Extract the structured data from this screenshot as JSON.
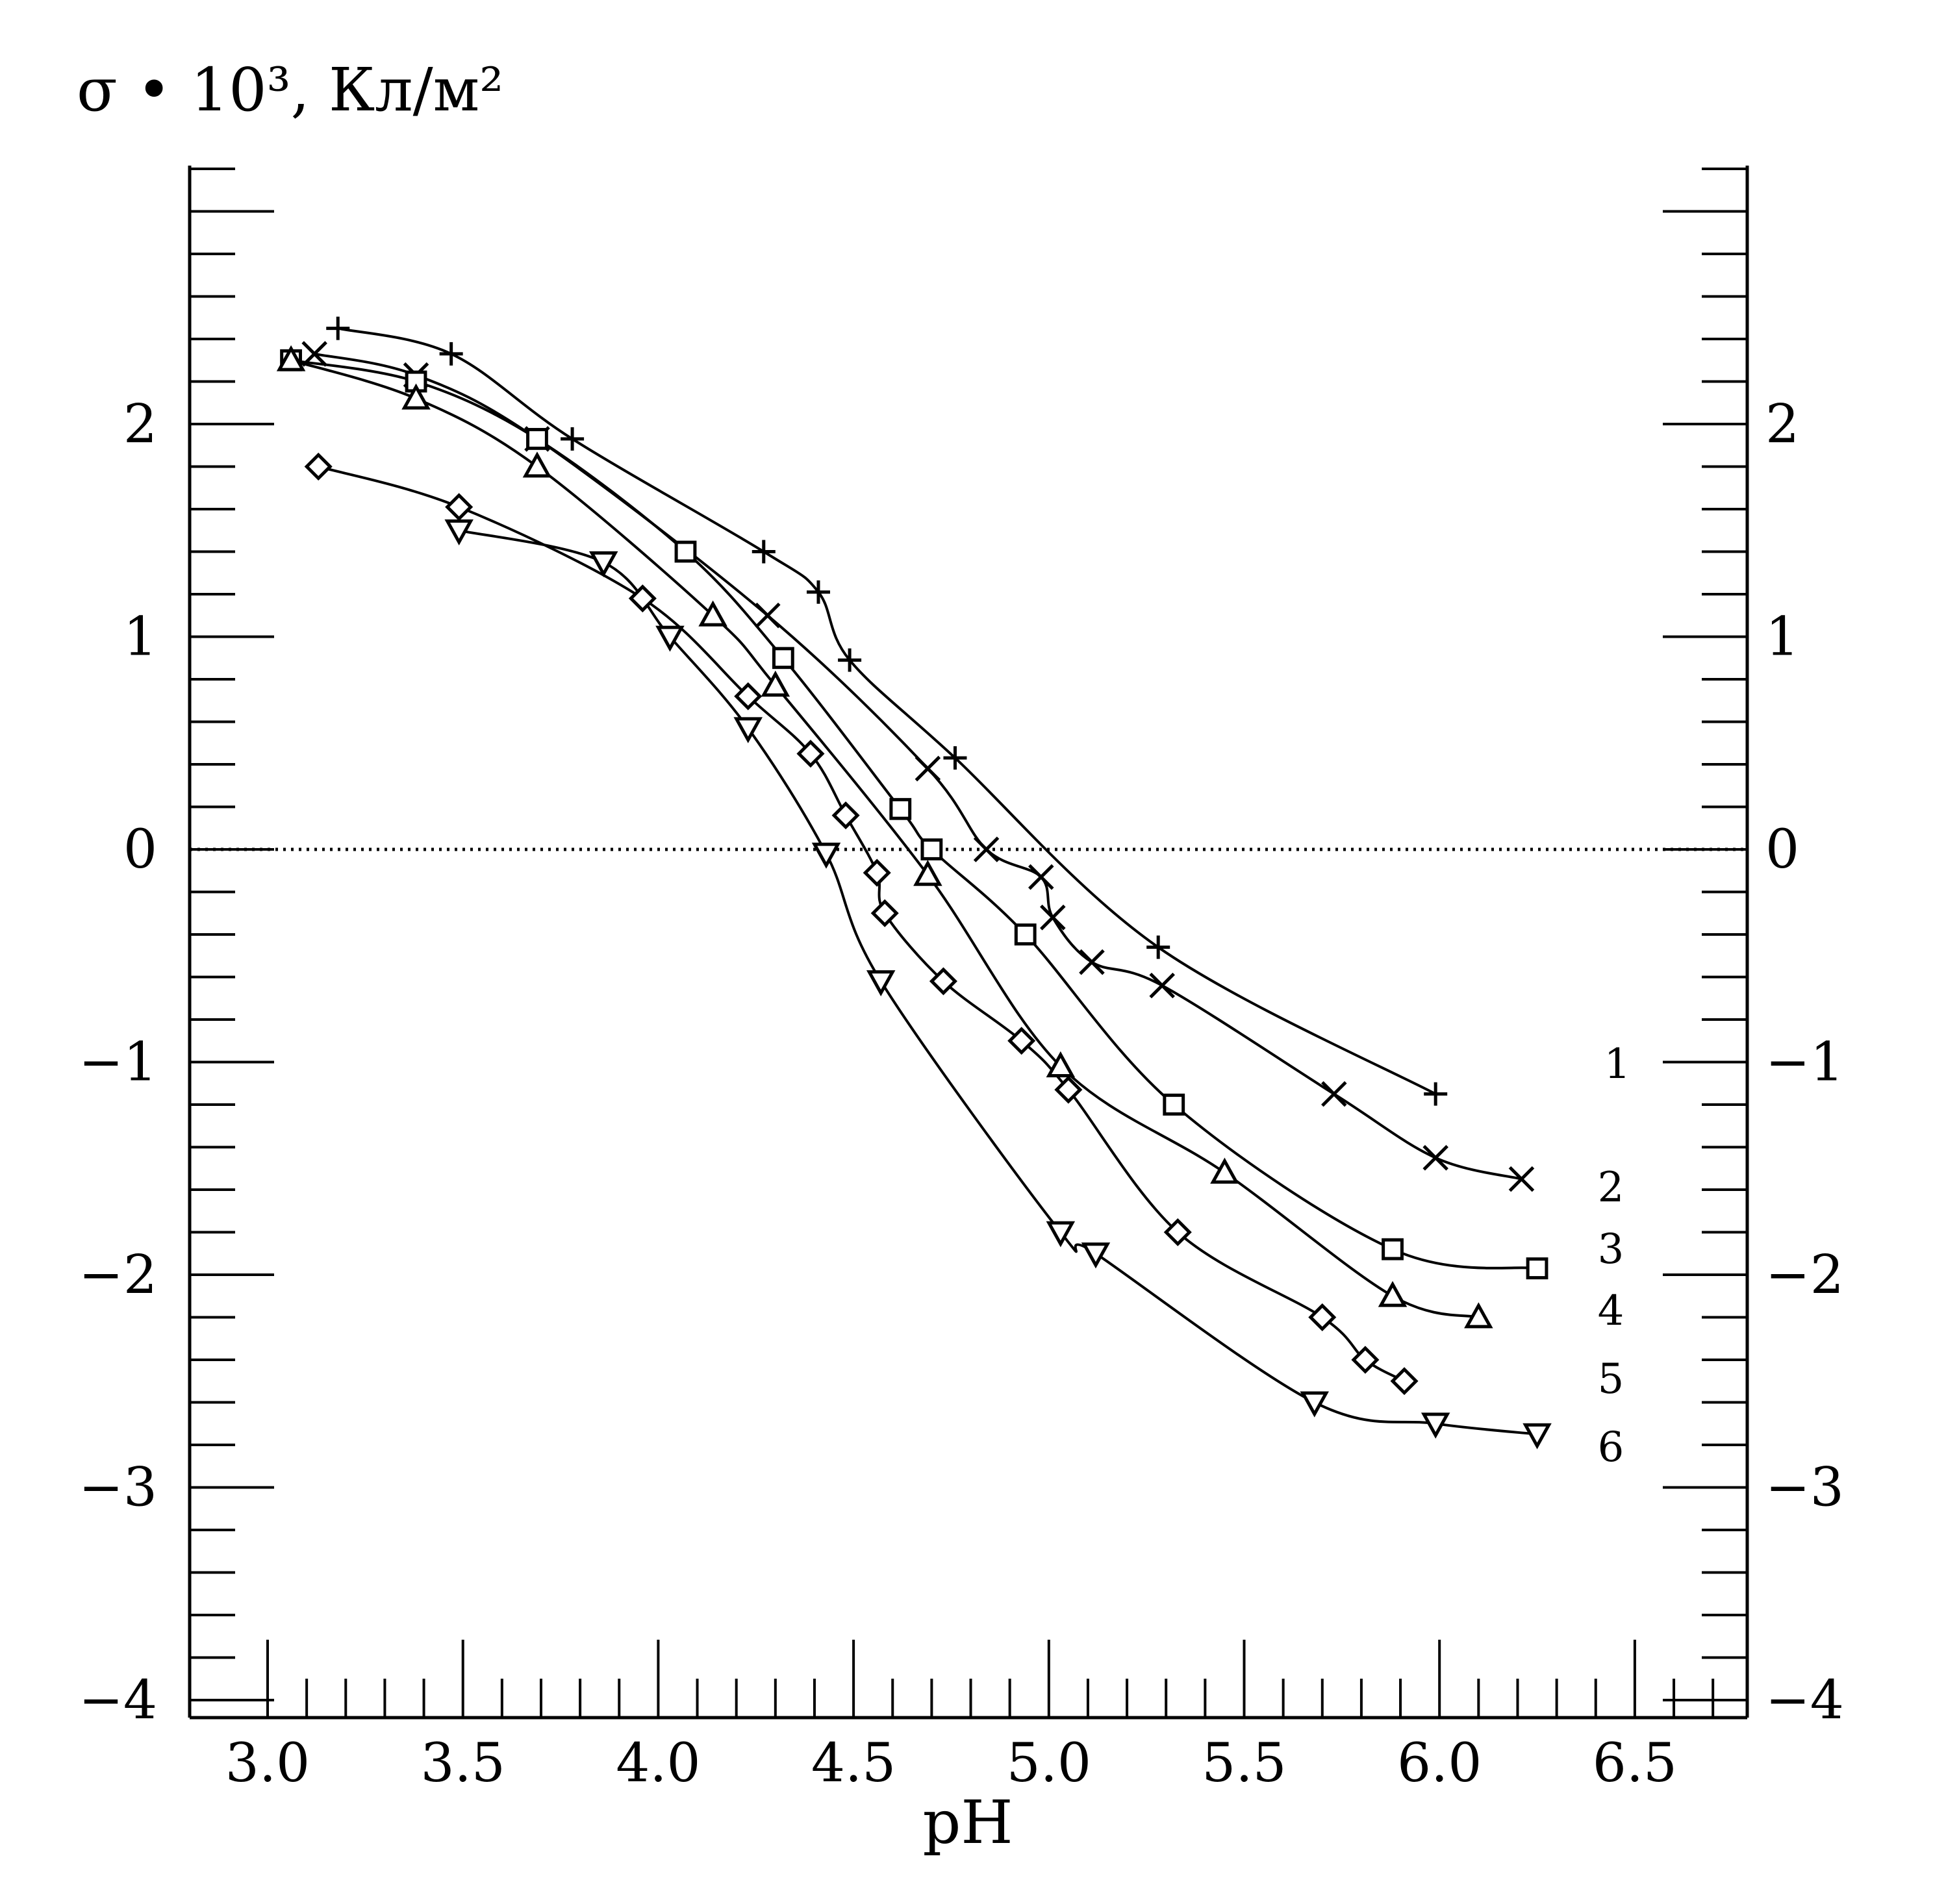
{
  "chart_data": {
    "type": "line",
    "title": "",
    "ylabel": "σ • 10³, Кл/м²",
    "xlabel": "pH",
    "xlim": [
      2.85,
      6.85
    ],
    "ylim": [
      -4,
      3.2
    ],
    "x_ticks": [
      "3.0",
      "3.5",
      "4.0",
      "4.5",
      "5.0",
      "5.5",
      "6.0",
      "6.5"
    ],
    "y_ticks": [
      "2",
      "1",
      "0",
      "−1",
      "−2",
      "−3",
      "−4"
    ],
    "zero_line": true,
    "legend": "curve numbers at right",
    "series": [
      {
        "name": "1",
        "marker": "plus",
        "x": [
          3.18,
          3.47,
          3.78,
          4.27,
          4.41,
          4.49,
          4.76,
          5.28,
          5.99
        ],
        "y": [
          2.45,
          2.33,
          1.93,
          1.4,
          1.21,
          0.89,
          0.43,
          -0.46,
          -1.15
        ]
      },
      {
        "name": "2",
        "marker": "x",
        "x": [
          3.12,
          3.38,
          3.69,
          4.28,
          4.69,
          4.84,
          4.98,
          5.01,
          5.11,
          5.29,
          5.73,
          5.99,
          6.21
        ],
        "y": [
          2.33,
          2.23,
          1.93,
          1.1,
          0.38,
          0.0,
          -0.13,
          -0.32,
          -0.53,
          -0.64,
          -1.15,
          -1.45,
          -1.55
        ]
      },
      {
        "name": "3",
        "marker": "square",
        "x": [
          3.06,
          3.38,
          3.69,
          4.07,
          4.32,
          4.62,
          4.7,
          4.94,
          5.32,
          5.88,
          6.25
        ],
        "y": [
          2.3,
          2.2,
          1.93,
          1.4,
          0.9,
          0.19,
          0.0,
          -0.4,
          -1.2,
          -1.88,
          -1.97
        ]
      },
      {
        "name": "4",
        "marker": "triangle",
        "x": [
          3.06,
          3.38,
          3.69,
          4.14,
          4.3,
          4.69,
          5.03,
          5.45,
          5.88,
          6.1
        ],
        "y": [
          2.3,
          2.12,
          1.8,
          1.1,
          0.77,
          -0.12,
          -1.02,
          -1.52,
          -2.1,
          -2.2
        ]
      },
      {
        "name": "5",
        "marker": "diamond",
        "x": [
          3.13,
          3.49,
          3.96,
          4.23,
          4.39,
          4.48,
          4.56,
          4.58,
          4.73,
          4.93,
          5.05,
          5.33,
          5.7,
          5.81,
          5.91
        ],
        "y": [
          1.8,
          1.61,
          1.18,
          0.72,
          0.45,
          0.16,
          -0.11,
          -0.3,
          -0.62,
          -0.9,
          -1.13,
          -1.8,
          -2.2,
          -2.4,
          -2.5
        ]
      },
      {
        "name": "6",
        "marker": "triangle-down",
        "x": [
          3.49,
          3.86,
          4.03,
          4.23,
          4.43,
          4.57,
          5.03,
          5.12,
          5.68,
          5.99,
          6.25
        ],
        "y": [
          1.5,
          1.35,
          1.0,
          0.57,
          -0.02,
          -0.62,
          -1.8,
          -1.9,
          -2.6,
          -2.7,
          -2.75
        ]
      }
    ]
  }
}
